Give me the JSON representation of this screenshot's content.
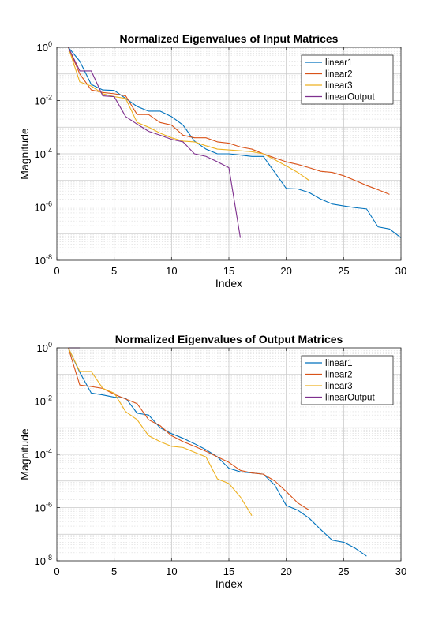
{
  "chart_data": [
    {
      "type": "line",
      "title": "Normalized Eigenvalues of Input Matrices",
      "xlabel": "Index",
      "ylabel": "Magnitude",
      "xlim": [
        0,
        30
      ],
      "ylim": [
        1e-08,
        1
      ],
      "yscale": "log",
      "xticks": [
        0,
        5,
        10,
        15,
        20,
        25,
        30
      ],
      "yticks": [
        {
          "base": "10",
          "exp": "0",
          "value": 1
        },
        {
          "base": "10",
          "exp": "-2",
          "value": 0.01
        },
        {
          "base": "10",
          "exp": "-4",
          "value": 0.0001
        },
        {
          "base": "10",
          "exp": "-6",
          "value": 1e-06
        },
        {
          "base": "10",
          "exp": "-8",
          "value": 1e-08
        }
      ],
      "grid": true,
      "legend_position": "top-right",
      "series": [
        {
          "name": "linear1",
          "color": "#0072BD",
          "x": [
            1,
            2,
            3,
            4,
            5,
            6,
            7,
            8,
            9,
            10,
            11,
            12,
            13,
            14,
            15,
            16,
            17,
            18,
            19,
            20,
            21,
            22,
            23,
            24,
            25,
            26,
            27,
            28,
            29,
            30
          ],
          "y": [
            1,
            0.3,
            0.04,
            0.025,
            0.024,
            0.012,
            0.006,
            0.004,
            0.004,
            0.0025,
            0.0012,
            0.0003,
            0.00015,
            0.0001,
            0.0001,
            9e-05,
            8e-05,
            8e-05,
            2e-05,
            5e-06,
            4.8e-06,
            3.5e-06,
            2e-06,
            1.3e-06,
            1.1e-06,
            9.5e-07,
            8.5e-07,
            1.8e-07,
            1.5e-07,
            7e-08
          ]
        },
        {
          "name": "linear2",
          "color": "#D95319",
          "x": [
            1,
            2,
            3,
            4,
            5,
            6,
            7,
            8,
            9,
            10,
            11,
            12,
            13,
            14,
            15,
            16,
            17,
            18,
            19,
            20,
            21,
            22,
            23,
            24,
            25,
            26,
            27,
            28,
            29
          ],
          "y": [
            1,
            0.1,
            0.025,
            0.02,
            0.018,
            0.015,
            0.003,
            0.003,
            0.0015,
            0.0012,
            0.0005,
            0.0004,
            0.0004,
            0.00028,
            0.00025,
            0.00018,
            0.00015,
            0.0001,
            7e-05,
            5e-05,
            4e-05,
            3e-05,
            2.2e-05,
            2e-05,
            1.5e-05,
            1e-05,
            6.5e-06,
            4.5e-06,
            3e-06
          ]
        },
        {
          "name": "linear3",
          "color": "#EDB120",
          "x": [
            1,
            2,
            3,
            4,
            5,
            6,
            7,
            8,
            9,
            10,
            11,
            12,
            13,
            14,
            15,
            16,
            17,
            18,
            19,
            20,
            21,
            22
          ],
          "y": [
            1,
            0.05,
            0.035,
            0.018,
            0.014,
            0.012,
            0.0015,
            0.001,
            0.0006,
            0.0004,
            0.0003,
            0.00028,
            0.0002,
            0.00015,
            0.00014,
            0.00013,
            0.00012,
            0.0001,
            6e-05,
            3.5e-05,
            2e-05,
            1e-05
          ]
        },
        {
          "name": "linearOutput",
          "color": "#7E2F8E",
          "x": [
            1,
            2,
            3,
            4,
            5,
            6,
            7,
            8,
            9,
            10,
            11,
            12,
            13,
            14,
            15,
            16
          ],
          "y": [
            1,
            0.13,
            0.13,
            0.015,
            0.014,
            0.0025,
            0.0013,
            0.0007,
            0.0005,
            0.00035,
            0.00028,
            0.0001,
            8e-05,
            5e-05,
            3e-05,
            7e-08
          ]
        }
      ]
    },
    {
      "type": "line",
      "title": "Normalized Eigenvalues of Output Matrices",
      "xlabel": "Index",
      "ylabel": "Magnitude",
      "xlim": [
        0,
        30
      ],
      "ylim": [
        1e-08,
        1
      ],
      "yscale": "log",
      "xticks": [
        0,
        5,
        10,
        15,
        20,
        25,
        30
      ],
      "yticks": [
        {
          "base": "10",
          "exp": "0",
          "value": 1
        },
        {
          "base": "10",
          "exp": "-2",
          "value": 0.01
        },
        {
          "base": "10",
          "exp": "-4",
          "value": 0.0001
        },
        {
          "base": "10",
          "exp": "-6",
          "value": 1e-06
        },
        {
          "base": "10",
          "exp": "-8",
          "value": 1e-08
        }
      ],
      "grid": true,
      "legend_position": "top-right",
      "series": [
        {
          "name": "linear1",
          "color": "#0072BD",
          "x": [
            1,
            2,
            3,
            4,
            5,
            6,
            7,
            8,
            9,
            10,
            11,
            12,
            13,
            14,
            15,
            16,
            17,
            18,
            19,
            20,
            21,
            22,
            23,
            24,
            25,
            26,
            27
          ],
          "y": [
            1,
            0.12,
            0.02,
            0.017,
            0.014,
            0.013,
            0.0035,
            0.003,
            0.001,
            0.0006,
            0.0004,
            0.00025,
            0.00015,
            8e-05,
            3e-05,
            2.2e-05,
            2e-05,
            1.8e-05,
            7e-06,
            1.2e-06,
            8e-07,
            4e-07,
            1.5e-07,
            6e-08,
            5e-08,
            3e-08,
            1.5e-08
          ]
        },
        {
          "name": "linear2",
          "color": "#D95319",
          "x": [
            1,
            2,
            3,
            4,
            5,
            6,
            7,
            8,
            9,
            10,
            11,
            12,
            13,
            14,
            15,
            16,
            17,
            18,
            19,
            20,
            21,
            22
          ],
          "y": [
            1,
            0.04,
            0.035,
            0.03,
            0.018,
            0.012,
            0.008,
            0.002,
            0.0012,
            0.0005,
            0.0003,
            0.0002,
            0.00013,
            8e-05,
            5e-05,
            2.5e-05,
            2e-05,
            1.8e-05,
            1e-05,
            4e-06,
            1.5e-06,
            8e-07
          ]
        },
        {
          "name": "linear3",
          "color": "#EDB120",
          "x": [
            1,
            2,
            3,
            4,
            5,
            6,
            7,
            8,
            9,
            10,
            11,
            12,
            13,
            14,
            15,
            16,
            17
          ],
          "y": [
            1,
            0.13,
            0.13,
            0.03,
            0.02,
            0.004,
            0.002,
            0.0005,
            0.0003,
            0.0002,
            0.00018,
            0.00012,
            8e-05,
            1.2e-05,
            8e-06,
            2.5e-06,
            5e-07
          ]
        },
        {
          "name": "linearOutput",
          "color": "#7E2F8E",
          "x": [
            1,
            2
          ],
          "y": [
            1,
            1
          ]
        }
      ]
    }
  ]
}
